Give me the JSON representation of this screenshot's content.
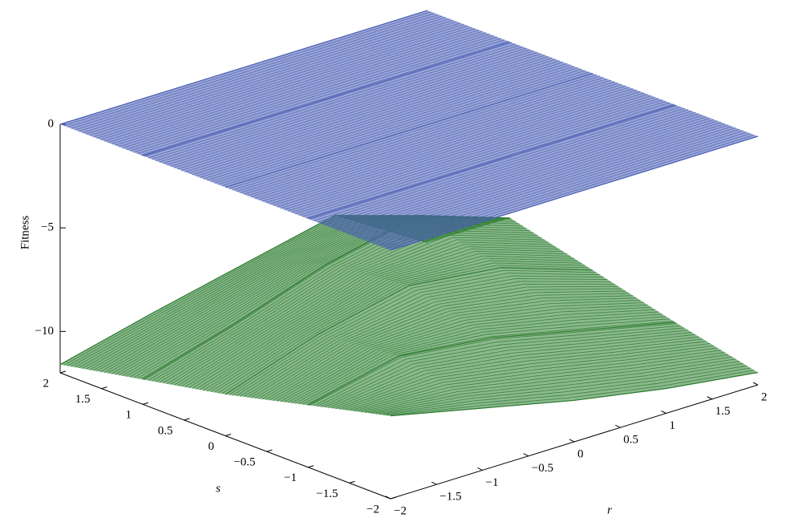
{
  "chart_data": {
    "type": "surface3d",
    "xlabel": "r",
    "ylabel": "s",
    "zlabel": "Fitness",
    "x": [
      -2,
      -1,
      0,
      1,
      2
    ],
    "y": [
      -2,
      -1,
      0,
      1,
      2
    ],
    "xlim": [
      -2,
      2
    ],
    "ylim": [
      -2,
      2
    ],
    "zlim": [
      -12,
      0
    ],
    "xticks": [
      {
        "value": -2,
        "label": "−2"
      },
      {
        "value": -1.5,
        "label": "−1.5"
      },
      {
        "value": -1,
        "label": "−1"
      },
      {
        "value": -0.5,
        "label": "−0.5"
      },
      0,
      0.5,
      1,
      1.5,
      2
    ],
    "yticks": [
      {
        "value": -2,
        "label": "−2"
      },
      {
        "value": -1.5,
        "label": "−1.5"
      },
      {
        "value": -1,
        "label": "−1"
      },
      {
        "value": -0.5,
        "label": "−0.5"
      },
      0,
      0.5,
      1,
      1.5,
      2
    ],
    "zticks": [
      0,
      {
        "value": -5,
        "label": "−5"
      },
      {
        "value": -10,
        "label": "−10"
      }
    ],
    "series": [
      {
        "color": "#2e7d32",
        "values": [
          [
            -8,
            -9,
            -10,
            -10.8,
            -11.4
          ],
          [
            -9,
            -8,
            -8.5,
            -9.5,
            -10.5
          ],
          [
            -10,
            -8.5,
            -7.5,
            -8,
            -9.5
          ],
          [
            -10.8,
            -9.5,
            -8,
            -7,
            -8.5
          ],
          [
            -11.6,
            -10.5,
            -9.5,
            -8.5,
            -11.2
          ]
        ]
      },
      {
        "color": "#4a5fb5",
        "values": [
          [
            0,
            0,
            0,
            0,
            0
          ],
          [
            0,
            0,
            0,
            0,
            0
          ],
          [
            0,
            0,
            0,
            0,
            0
          ],
          [
            0,
            0,
            0,
            0,
            0
          ],
          [
            0,
            0,
            0,
            0,
            0
          ]
        ]
      }
    ]
  }
}
